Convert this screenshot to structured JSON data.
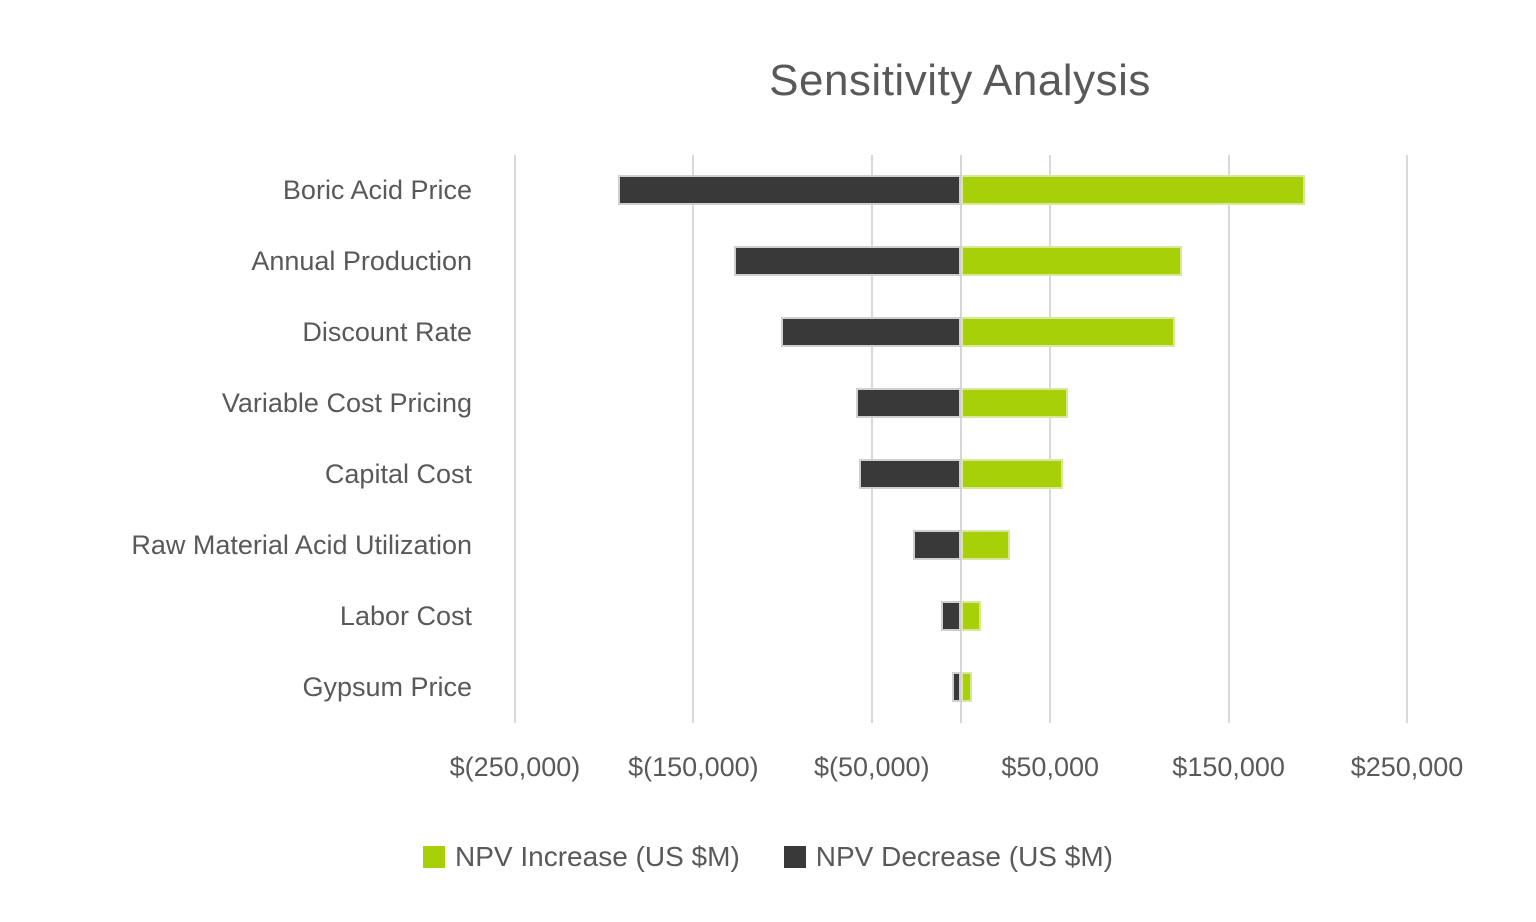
{
  "chart_data": {
    "type": "bar",
    "subtype": "tornado",
    "orientation": "horizontal",
    "title": "Sensitivity Analysis",
    "categories": [
      "Boric Acid Price",
      "Annual Production",
      "Discount Rate",
      "Variable Cost Pricing",
      "Capital Cost",
      "Raw Material Acid Utilization",
      "Labor Cost",
      "Gypsum Price"
    ],
    "series": [
      {
        "name": "NPV Increase (US $M)",
        "color": "#a8d008",
        "values": [
          193000,
          124000,
          120000,
          60000,
          57000,
          27500,
          11000,
          6000
        ]
      },
      {
        "name": "NPV Decrease (US $M)",
        "color": "#393939",
        "values": [
          -192000,
          -127000,
          -101000,
          -59000,
          -57000,
          -27000,
          -11000,
          -5000
        ]
      }
    ],
    "x_axis": {
      "min": -264000,
      "max": 264000,
      "gridline_values": [
        -250000,
        -150000,
        -50000,
        0,
        50000,
        150000,
        250000
      ],
      "ticks": [
        {
          "value": -250000,
          "label": "$(250,000)"
        },
        {
          "value": -150000,
          "label": "$(150,000)"
        },
        {
          "value": -50000,
          "label": "$(50,000)"
        },
        {
          "value": 50000,
          "label": "$50,000"
        },
        {
          "value": 150000,
          "label": "$150,000"
        },
        {
          "value": 250000,
          "label": "$250,000"
        }
      ]
    },
    "legend": {
      "position": "bottom",
      "items": [
        {
          "label": "NPV Increase (US $M)",
          "color": "#a8d008"
        },
        {
          "label": "NPV Decrease (US $M)",
          "color": "#393939"
        }
      ]
    },
    "grid": "vertical-on",
    "colors": {
      "background": "#ffffff",
      "text": "#595959",
      "gridline": "#d9d9d9"
    }
  }
}
